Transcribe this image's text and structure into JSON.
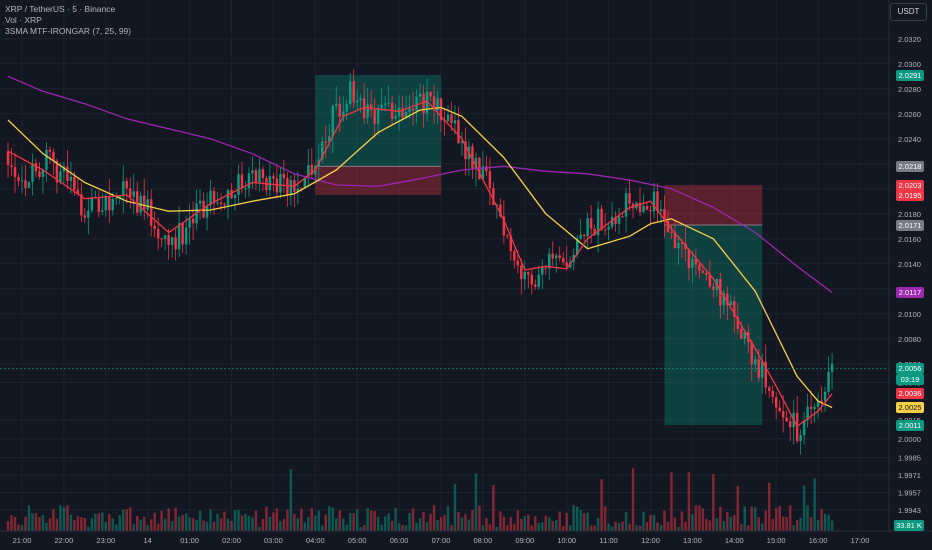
{
  "header": {
    "symbol_line": "XRP / TetherUS · 5 · Binance",
    "volume_line": "Vol · XRP",
    "indicator_line": "3SMA MTF-IRONGAR (7, 25, 99)",
    "currency_button": "USDT"
  },
  "price_axis": {
    "ticks": [
      "2.0320",
      "2.0300",
      "2.0280",
      "2.0260",
      "2.0240",
      "2.0220",
      "2.0200",
      "2.0180",
      "2.0160",
      "2.0140",
      "2.0120",
      "2.0100",
      "2.0080",
      "2.0060",
      "2.0045",
      "2.0015",
      "2.0000",
      "1.9985",
      "1.9971",
      "1.9957",
      "1.9943"
    ],
    "labels": [
      {
        "text": "2.0291",
        "color": "#089981"
      },
      {
        "text": "2.0218",
        "color": "#787b86"
      },
      {
        "text": "2.0203",
        "color": "#f23645"
      },
      {
        "text": "2.0195",
        "color": "#f23645"
      },
      {
        "text": "2.0171",
        "color": "#787b86"
      },
      {
        "text": "2.0117",
        "color": "#9c27b0"
      },
      {
        "text": "2.0056",
        "color": "#089981"
      },
      {
        "text": "03:19",
        "color": "#089981"
      },
      {
        "text": "2.0036",
        "color": "#f23645"
      },
      {
        "text": "2.0025",
        "color": "#f7d046"
      },
      {
        "text": "2.0011",
        "color": "#089981"
      },
      {
        "text": "33.81 K",
        "color": "#089981"
      }
    ]
  },
  "time_axis": {
    "ticks": [
      "21:00",
      "22:00",
      "23:00",
      "14",
      "01:00",
      "02:00",
      "03:00",
      "04:00",
      "05:00",
      "06:00",
      "07:00",
      "08:00",
      "09:00",
      "10:00",
      "11:00",
      "12:00",
      "13:00",
      "14:00",
      "15:00",
      "16:00",
      "17:00"
    ]
  },
  "chart_data": {
    "type": "candlestick",
    "symbol": "XRP / TetherUS",
    "interval": "5",
    "exchange": "Binance",
    "currency": "USDT",
    "ylim": [
      1.9935,
      2.0335
    ],
    "x_ticks": [
      "21:00",
      "22:00",
      "23:00",
      "14",
      "01:00",
      "02:00",
      "03:00",
      "04:00",
      "05:00",
      "06:00",
      "07:00",
      "08:00",
      "09:00",
      "10:00",
      "11:00",
      "12:00",
      "13:00",
      "14:00",
      "15:00",
      "16:00",
      "17:00"
    ],
    "close_anchors": [
      [
        "20:40",
        2.023
      ],
      [
        "21:00",
        2.0206
      ],
      [
        "21:30",
        2.0222
      ],
      [
        "22:00",
        2.0212
      ],
      [
        "22:30",
        2.0185
      ],
      [
        "23:00",
        2.0188
      ],
      [
        "23:30",
        2.02
      ],
      [
        "00:00",
        2.0182
      ],
      [
        "00:30",
        2.0158
      ],
      [
        "01:00",
        2.017
      ],
      [
        "01:30",
        2.0192
      ],
      [
        "02:00",
        2.02
      ],
      [
        "02:30",
        2.021
      ],
      [
        "03:00",
        2.0205
      ],
      [
        "03:30",
        2.02
      ],
      [
        "04:00",
        2.0225
      ],
      [
        "04:30",
        2.0262
      ],
      [
        "04:50",
        2.0275
      ],
      [
        "05:00",
        2.0262
      ],
      [
        "05:30",
        2.0262
      ],
      [
        "06:00",
        2.0265
      ],
      [
        "06:30",
        2.0272
      ],
      [
        "07:00",
        2.0262
      ],
      [
        "07:30",
        2.0238
      ],
      [
        "08:00",
        2.0212
      ],
      [
        "08:30",
        2.017
      ],
      [
        "09:00",
        2.0125
      ],
      [
        "09:30",
        2.014
      ],
      [
        "10:00",
        2.0132
      ],
      [
        "10:30",
        2.0168
      ],
      [
        "11:00",
        2.0178
      ],
      [
        "11:30",
        2.0192
      ],
      [
        "12:00",
        2.0192
      ],
      [
        "12:30",
        2.0165
      ],
      [
        "13:00",
        2.014
      ],
      [
        "13:30",
        2.0125
      ],
      [
        "14:00",
        2.0095
      ],
      [
        "14:30",
        2.006
      ],
      [
        "15:00",
        2.0035
      ],
      [
        "15:30",
        2.0005
      ],
      [
        "16:00",
        2.0028
      ],
      [
        "16:20",
        2.0056
      ]
    ],
    "sma_7": [
      [
        "20:40",
        2.023
      ],
      [
        "21:30",
        2.0215
      ],
      [
        "22:30",
        2.0192
      ],
      [
        "23:30",
        2.0195
      ],
      [
        "00:30",
        2.0165
      ],
      [
        "01:30",
        2.0188
      ],
      [
        "02:30",
        2.0205
      ],
      [
        "03:30",
        2.0202
      ],
      [
        "04:00",
        2.0215
      ],
      [
        "04:40",
        2.0258
      ],
      [
        "05:10",
        2.0265
      ],
      [
        "06:00",
        2.0262
      ],
      [
        "06:40",
        2.027
      ],
      [
        "07:30",
        2.024
      ],
      [
        "08:30",
        2.0175
      ],
      [
        "09:00",
        2.0135
      ],
      [
        "09:30",
        2.0138
      ],
      [
        "10:00",
        2.0136
      ],
      [
        "10:30",
        2.016
      ],
      [
        "11:30",
        2.0185
      ],
      [
        "12:00",
        2.019
      ],
      [
        "12:30",
        2.0168
      ],
      [
        "13:30",
        2.0128
      ],
      [
        "14:30",
        2.0072
      ],
      [
        "15:00",
        2.0042
      ],
      [
        "15:30",
        2.001
      ],
      [
        "16:00",
        2.0022
      ],
      [
        "16:20",
        2.0036
      ]
    ],
    "sma_25": [
      [
        "20:40",
        2.0255
      ],
      [
        "21:30",
        2.0228
      ],
      [
        "22:30",
        2.0205
      ],
      [
        "23:30",
        2.019
      ],
      [
        "00:30",
        2.0182
      ],
      [
        "01:30",
        2.0183
      ],
      [
        "02:30",
        2.019
      ],
      [
        "03:30",
        2.0196
      ],
      [
        "04:30",
        2.0215
      ],
      [
        "05:30",
        2.0245
      ],
      [
        "06:30",
        2.0263
      ],
      [
        "07:00",
        2.0265
      ],
      [
        "07:30",
        2.0258
      ],
      [
        "08:30",
        2.0225
      ],
      [
        "09:30",
        2.018
      ],
      [
        "10:30",
        2.0152
      ],
      [
        "11:30",
        2.0162
      ],
      [
        "12:00",
        2.0172
      ],
      [
        "12:30",
        2.0176
      ],
      [
        "13:30",
        2.016
      ],
      [
        "14:30",
        2.0118
      ],
      [
        "15:30",
        2.005
      ],
      [
        "16:00",
        2.003
      ],
      [
        "16:20",
        2.0025
      ]
    ],
    "sma_99": [
      [
        "20:40",
        2.029
      ],
      [
        "21:30",
        2.0278
      ],
      [
        "22:30",
        2.0268
      ],
      [
        "23:30",
        2.0256
      ],
      [
        "00:30",
        2.0248
      ],
      [
        "01:30",
        2.024
      ],
      [
        "02:30",
        2.0228
      ],
      [
        "03:30",
        2.0212
      ],
      [
        "04:30",
        2.0203
      ],
      [
        "05:30",
        2.0202
      ],
      [
        "06:30",
        2.0208
      ],
      [
        "07:30",
        2.0215
      ],
      [
        "08:30",
        2.0218
      ],
      [
        "09:30",
        2.0214
      ],
      [
        "10:30",
        2.0212
      ],
      [
        "11:30",
        2.0207
      ],
      [
        "12:30",
        2.02
      ],
      [
        "13:30",
        2.0185
      ],
      [
        "14:30",
        2.0165
      ],
      [
        "15:30",
        2.0138
      ],
      [
        "16:20",
        2.0117
      ]
    ],
    "positions": [
      {
        "side": "long",
        "start": "04:00",
        "end": "07:00",
        "entry": 2.0218,
        "target": 2.0291,
        "stop": 2.0195
      },
      {
        "side": "short",
        "start": "12:20",
        "end": "14:40",
        "entry": 2.0171,
        "target": 2.0011,
        "stop": 2.0203
      }
    ],
    "volume_unit": "K",
    "last_volume": 33.81
  }
}
